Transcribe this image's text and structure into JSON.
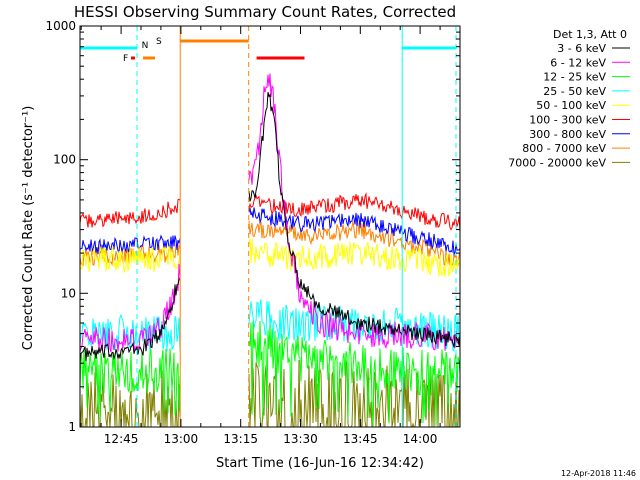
{
  "chart_data": {
    "type": "line",
    "title": "HESSI Observing Summary Count Rates, Corrected",
    "xlabel": "Start Time (16-Jun-16 12:34:42)",
    "ylabel": "Corrected Count Rate (s⁻¹ detector⁻¹)",
    "y_scale": "log",
    "ylim": [
      1,
      1000
    ],
    "xlim": [
      "12:34:42",
      "14:10:00"
    ],
    "x_ticks": [
      "12:45",
      "13:00",
      "13:15",
      "13:30",
      "13:45",
      "14:00"
    ],
    "y_ticks": [
      "1",
      "10",
      "100",
      "1000"
    ],
    "legend_title": "Det 1,3, Att 0",
    "legend_position": "right",
    "timestamp": "12-Apr-2018 11:46",
    "data_gaps": [
      [
        "12:59:50",
        "13:17:00"
      ]
    ],
    "markers": [
      {
        "label": "F",
        "color": "#ff0000",
        "start": "12:47:30",
        "end": "12:48:30",
        "row": 2
      },
      {
        "label": "N",
        "color": "#00ffff",
        "start": "12:51:00",
        "end": "12:51:00",
        "row": 1
      },
      {
        "label": "S",
        "color": "#ff8000",
        "start": "12:50:30",
        "end": "12:53:30",
        "row": 2
      },
      {
        "label": "",
        "color": "#ff8000",
        "start": "12:59:50",
        "end": "13:17:00",
        "row": 0
      },
      {
        "label": "",
        "color": "#ff0000",
        "start": "13:19:00",
        "end": "13:31:00",
        "row": 2
      },
      {
        "label": "",
        "color": "#00ffff",
        "start": "12:34:42",
        "end": "12:49:00",
        "row": 1
      },
      {
        "label": "",
        "color": "#00ffff",
        "start": "13:55:30",
        "end": "14:09:00",
        "row": 1
      }
    ],
    "vertical_lines": [
      {
        "time": "12:49:00",
        "color": "#00ffff",
        "dash": true
      },
      {
        "time": "12:59:50",
        "color": "#ff8000",
        "dash": false
      },
      {
        "time": "13:17:00",
        "color": "#ff8000",
        "dash": true
      },
      {
        "time": "13:55:30",
        "color": "#00ffff",
        "dash": false
      },
      {
        "time": "14:09:00",
        "color": "#00ffff",
        "dash": true
      }
    ],
    "series": [
      {
        "name": "3 - 6 keV",
        "color": "#000000",
        "points": [
          [
            "12:34:42",
            3.5
          ],
          [
            "12:50:00",
            3.8
          ],
          [
            "12:55:00",
            5
          ],
          [
            "12:58:00",
            9
          ],
          [
            "12:59:50",
            14
          ],
          [
            "13:19:00",
            60
          ],
          [
            "13:20:30",
            150
          ],
          [
            "13:22:00",
            300
          ],
          [
            "13:23:30",
            180
          ],
          [
            "13:25:00",
            60
          ],
          [
            "13:27:00",
            25
          ],
          [
            "13:30:00",
            12
          ],
          [
            "13:35:00",
            8
          ],
          [
            "13:45:00",
            6
          ],
          [
            "14:00:00",
            5
          ],
          [
            "14:09:00",
            4.5
          ]
        ]
      },
      {
        "name": "6 - 12 keV",
        "color": "#ff00ff",
        "points": [
          [
            "12:34:42",
            4.5
          ],
          [
            "12:50:00",
            4.5
          ],
          [
            "12:55:00",
            5.5
          ],
          [
            "12:58:00",
            9
          ],
          [
            "12:59:50",
            15
          ],
          [
            "13:19:00",
            90
          ],
          [
            "13:20:30",
            250
          ],
          [
            "13:22:00",
            450
          ],
          [
            "13:23:30",
            250
          ],
          [
            "13:25:00",
            80
          ],
          [
            "13:27:00",
            25
          ],
          [
            "13:30:00",
            10
          ],
          [
            "13:35:00",
            6
          ],
          [
            "13:45:00",
            5
          ],
          [
            "14:00:00",
            4.8
          ],
          [
            "14:09:00",
            4.5
          ]
        ]
      },
      {
        "name": "12 - 25 keV",
        "color": "#00ff00",
        "points": [
          [
            "12:34:42",
            2.6
          ],
          [
            "12:59:50",
            2.6
          ],
          [
            "13:17:00",
            4
          ],
          [
            "13:22:00",
            4.5
          ],
          [
            "13:25:00",
            3.5
          ],
          [
            "13:45:00",
            2.8
          ],
          [
            "14:09:00",
            2.5
          ]
        ]
      },
      {
        "name": "25 - 50 keV",
        "color": "#00ffff",
        "points": [
          [
            "12:34:42",
            5
          ],
          [
            "12:59:50",
            5
          ],
          [
            "13:17:00",
            7
          ],
          [
            "13:25:00",
            6
          ],
          [
            "13:35:00",
            6
          ],
          [
            "13:45:00",
            6
          ],
          [
            "14:09:00",
            5
          ]
        ]
      },
      {
        "name": "50 - 100 keV",
        "color": "#ffff00",
        "points": [
          [
            "12:34:42",
            18
          ],
          [
            "12:59:50",
            18
          ],
          [
            "13:17:00",
            21
          ],
          [
            "13:30:00",
            18
          ],
          [
            "13:45:00",
            20
          ],
          [
            "14:09:00",
            16
          ]
        ]
      },
      {
        "name": "100 - 300 keV",
        "color": "#ff0000",
        "points": [
          [
            "12:34:42",
            35
          ],
          [
            "12:50:00",
            37
          ],
          [
            "12:59:50",
            45
          ],
          [
            "13:17:00",
            48
          ],
          [
            "13:30:00",
            42
          ],
          [
            "13:45:00",
            50
          ],
          [
            "14:00:00",
            38
          ],
          [
            "14:09:00",
            33
          ]
        ]
      },
      {
        "name": "300 - 800 keV",
        "color": "#0000ff",
        "points": [
          [
            "12:34:42",
            22
          ],
          [
            "12:59:50",
            24
          ],
          [
            "13:17:00",
            40
          ],
          [
            "13:30:00",
            33
          ],
          [
            "13:45:00",
            35
          ],
          [
            "14:00:00",
            26
          ],
          [
            "14:09:00",
            22
          ]
        ]
      },
      {
        "name": "800 - 7000 keV",
        "color": "#ff8000",
        "points": [
          [
            "12:34:42",
            19
          ],
          [
            "12:59:50",
            20
          ],
          [
            "13:17:00",
            30
          ],
          [
            "13:30:00",
            27
          ],
          [
            "13:45:00",
            30
          ],
          [
            "14:00:00",
            22
          ],
          [
            "14:09:00",
            18
          ]
        ]
      },
      {
        "name": "7000 - 20000 keV",
        "color": "#808000",
        "points": [
          [
            "12:34:42",
            1.5
          ],
          [
            "12:59:50",
            1.5
          ],
          [
            "13:17:00",
            1.8
          ],
          [
            "13:45:00",
            1.8
          ],
          [
            "14:09:00",
            1.5
          ]
        ]
      }
    ]
  }
}
